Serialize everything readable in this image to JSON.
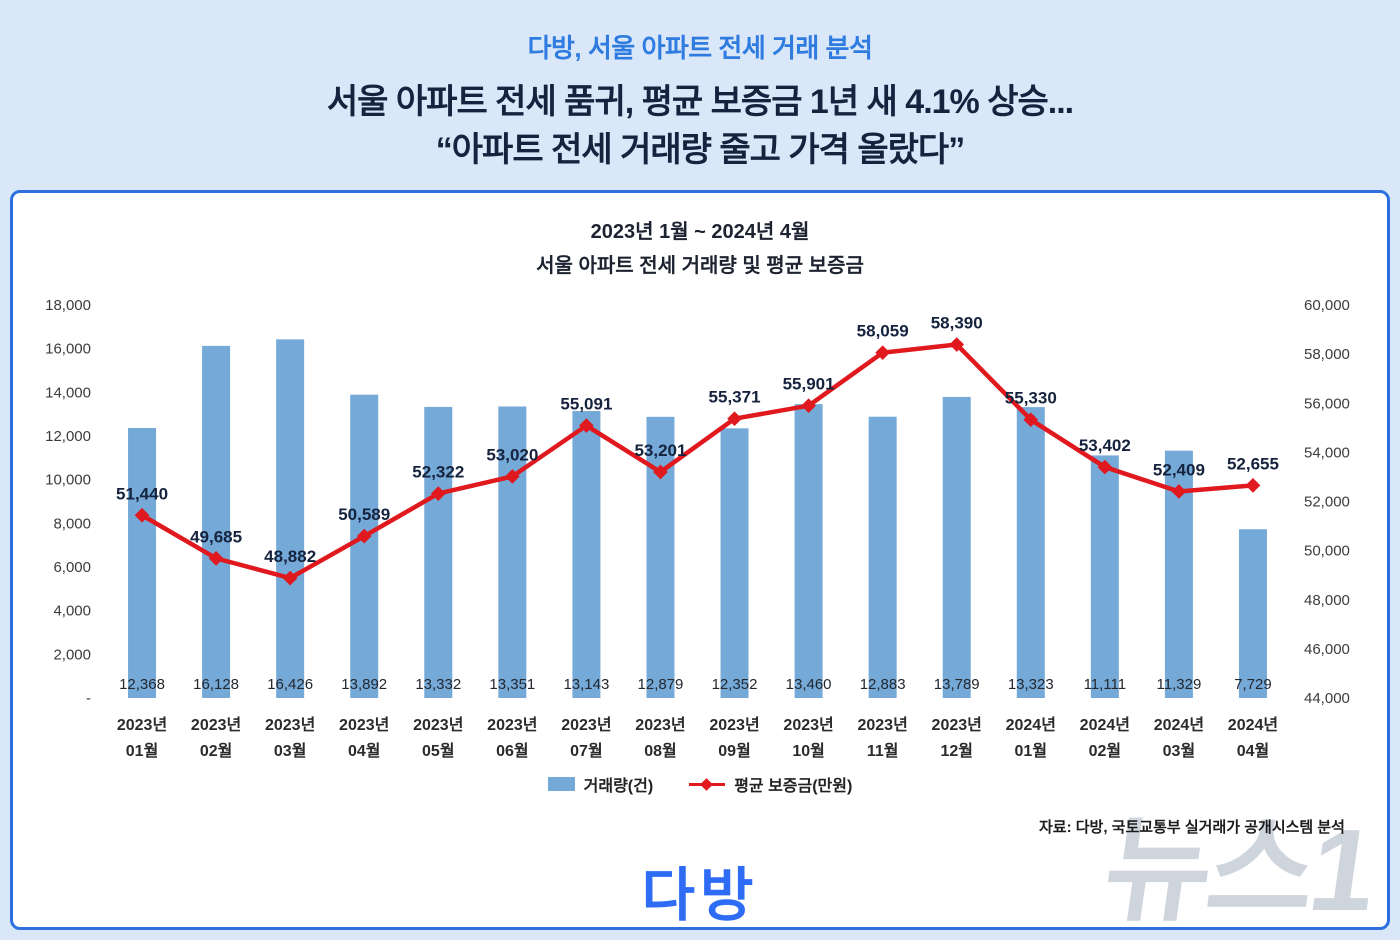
{
  "header": {
    "subtitle": "다방, 서울 아파트 전세 거래 분석",
    "headline_line1": "서울 아파트 전세 품귀, 평균 보증금 1년 새 4.1% 상승...",
    "headline_line2": "“아파트 전세 거래량 줄고 가격 올랐다”"
  },
  "chart_data": {
    "type": "bar",
    "subtype": "bar+line combo, dual y-axis",
    "title_line1": "2023년 1월 ~ 2024년 4월",
    "title_line2": "서울 아파트 전세 거래량 및 평균 보증금",
    "categories": [
      [
        "2023년",
        "01월"
      ],
      [
        "2023년",
        "02월"
      ],
      [
        "2023년",
        "03월"
      ],
      [
        "2023년",
        "04월"
      ],
      [
        "2023년",
        "05월"
      ],
      [
        "2023년",
        "06월"
      ],
      [
        "2023년",
        "07월"
      ],
      [
        "2023년",
        "08월"
      ],
      [
        "2023년",
        "09월"
      ],
      [
        "2023년",
        "10월"
      ],
      [
        "2023년",
        "11월"
      ],
      [
        "2023년",
        "12월"
      ],
      [
        "2024년",
        "01월"
      ],
      [
        "2024년",
        "02월"
      ],
      [
        "2024년",
        "03월"
      ],
      [
        "2024년",
        "04월"
      ]
    ],
    "series": [
      {
        "name": "거래량(건)",
        "type": "bar",
        "axis": "left",
        "color": "#74a9d8",
        "values": [
          12368,
          16128,
          16426,
          13892,
          13332,
          13351,
          13143,
          12879,
          12352,
          13460,
          12883,
          13789,
          13323,
          11111,
          11329,
          7729
        ]
      },
      {
        "name": "평균 보증금(만원)",
        "type": "line",
        "axis": "right",
        "color": "#e0191f",
        "values": [
          51440,
          49685,
          48882,
          50589,
          52322,
          53020,
          55091,
          53201,
          55371,
          55901,
          58059,
          58390,
          55330,
          53402,
          52409,
          52655
        ]
      }
    ],
    "left_axis": {
      "min": 0,
      "max": 18000,
      "step": 2000,
      "zero_label": "-"
    },
    "right_axis": {
      "min": 44000,
      "max": 60000,
      "step": 2000
    },
    "grid": "off",
    "legend_position": "bottom"
  },
  "footer": {
    "source": "자료: 다방, 국토교통부 실거래가 공개시스템 분석",
    "logo": "다방",
    "watermark": "뉴스1"
  },
  "colors": {
    "page_background": "#d9e7f8",
    "card_border": "#2e6fe0",
    "subtitle_blue": "#2f7ce0",
    "headline_navy": "#15233f",
    "bar_blue": "#74a9d8",
    "line_red": "#e0191f",
    "logo_blue": "#2f6cf6",
    "watermark_gray": "#cfd5dd"
  }
}
